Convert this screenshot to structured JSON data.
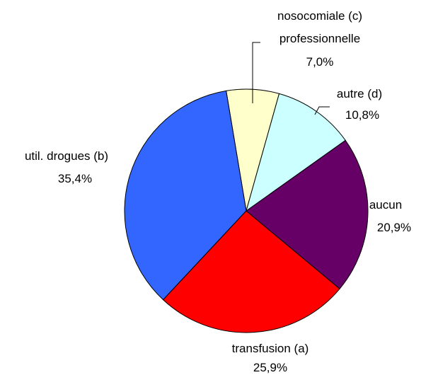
{
  "chart_data": {
    "type": "pie",
    "categories": [
      "autre (d)",
      "aucun",
      "transfusion (a)",
      "util. drogues (b)",
      "nosocomiale (c)\nprofessionnelle"
    ],
    "values": [
      10.8,
      20.9,
      25.9,
      35.4,
      7.0
    ],
    "value_labels": [
      "10,8%",
      "20,9%",
      "25,9%",
      "35,4%",
      "7,0%"
    ],
    "colors": [
      "#ccffff",
      "#660066",
      "#ff0000",
      "#3366ff",
      "#ffffcc"
    ]
  }
}
